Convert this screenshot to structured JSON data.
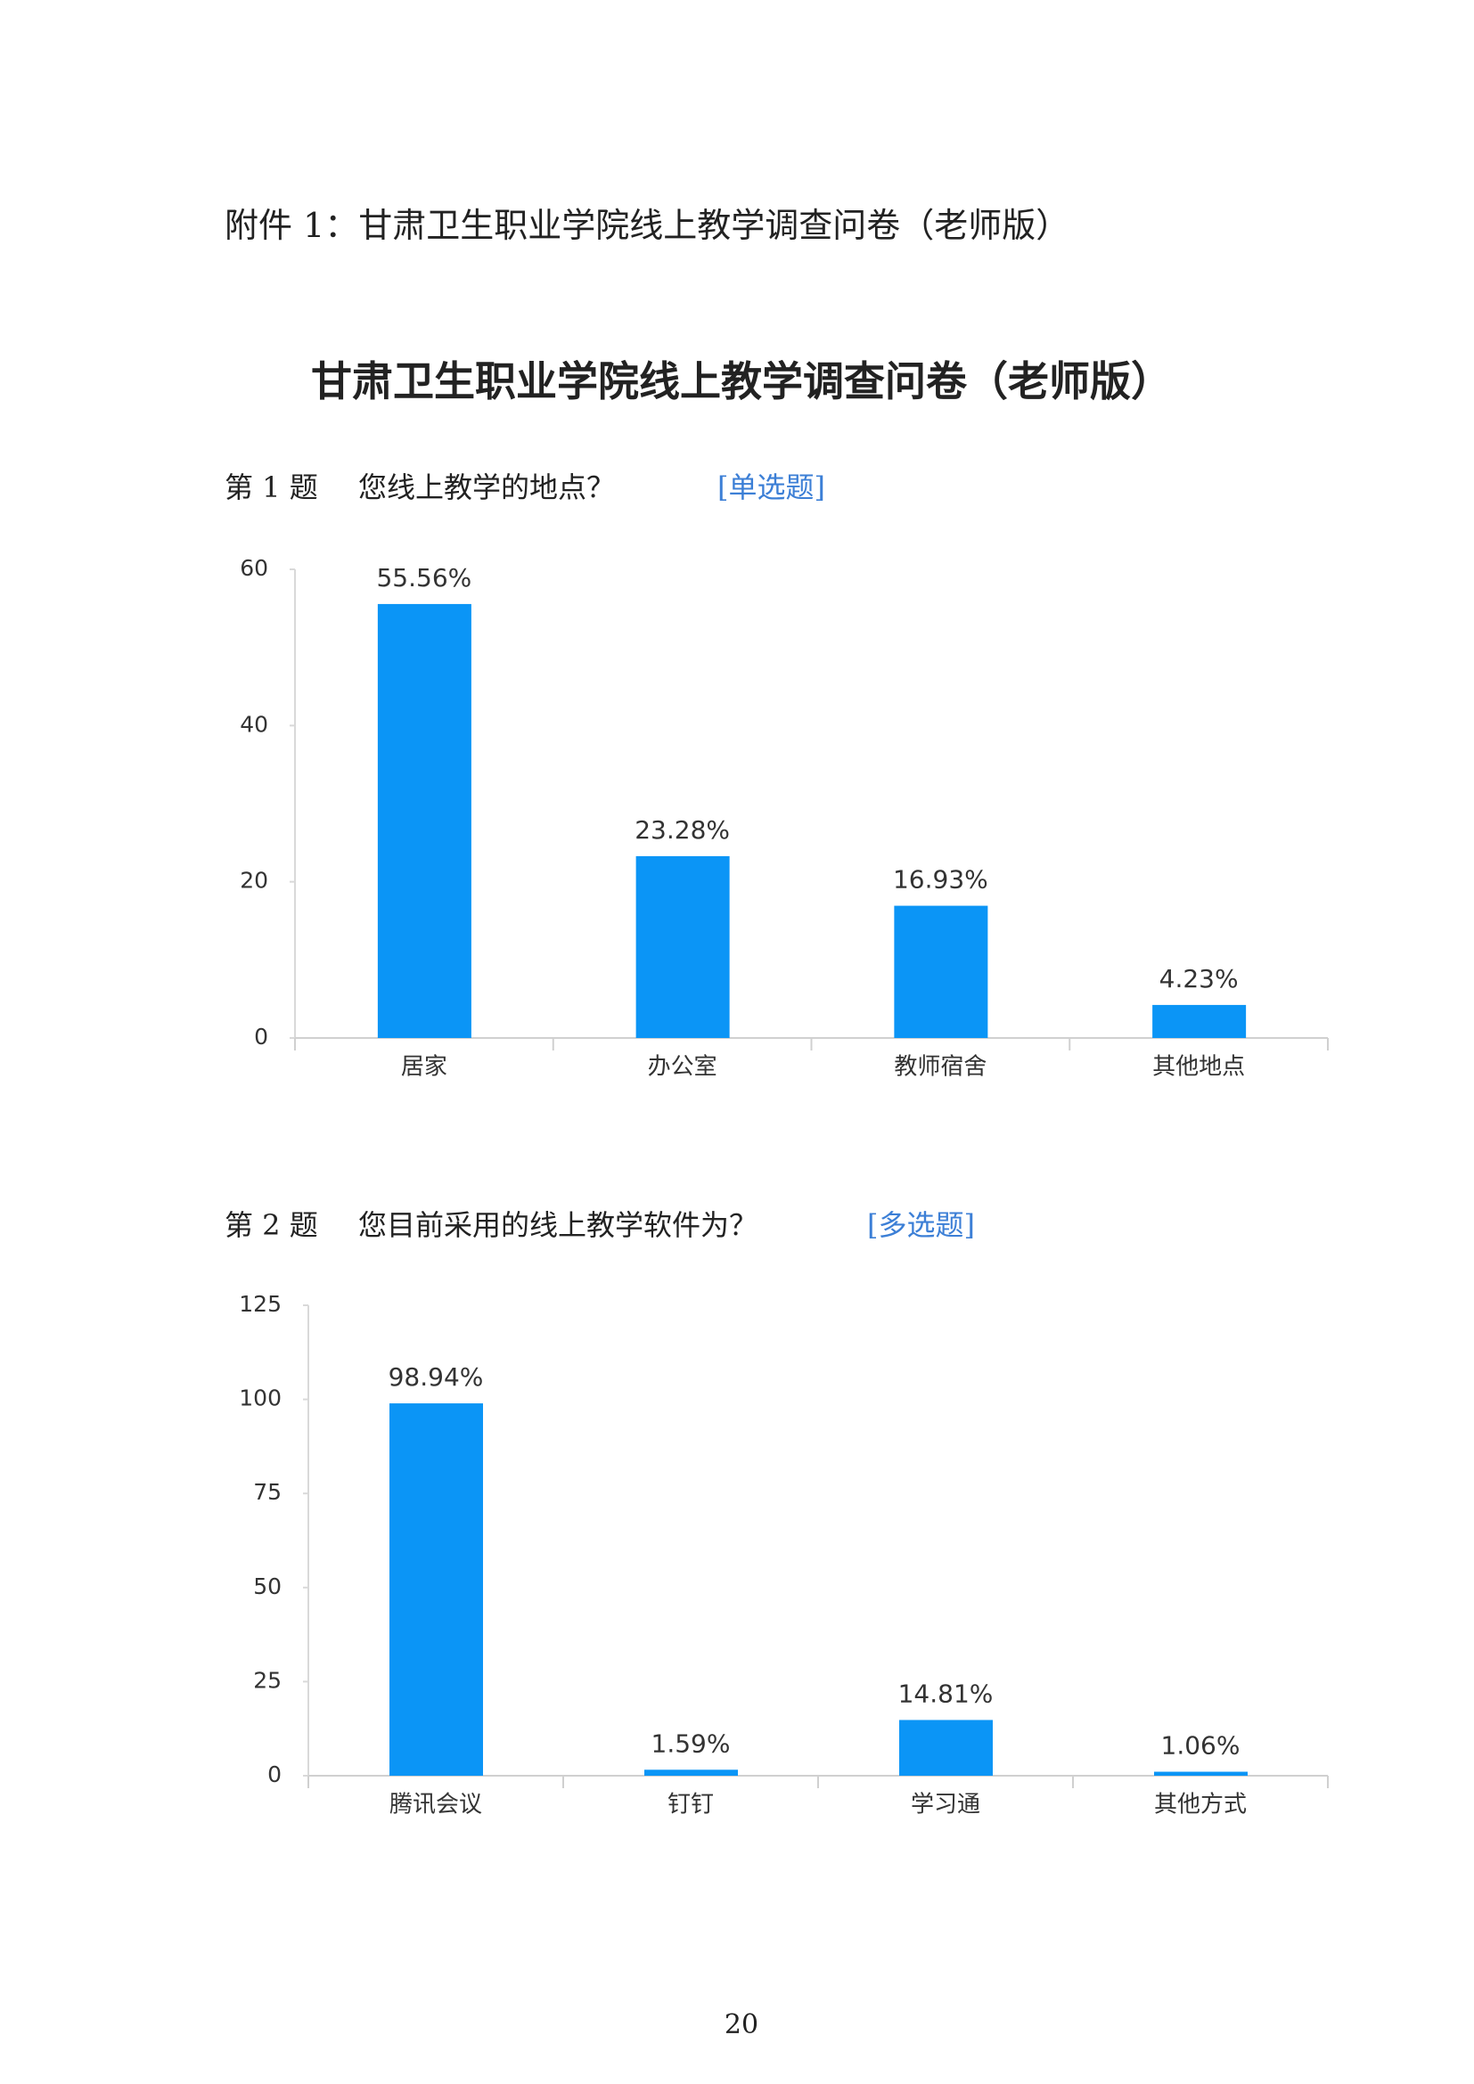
{
  "header": "附件 1：甘肃卫生职业学院线上教学调查问卷（老师版）",
  "title": "甘肃卫生职业学院线上教学调查问卷（老师版）",
  "questions": [
    {
      "number": "第 1 题",
      "text": "您线上教学的地点？",
      "kind": "[单选题]"
    },
    {
      "number": "第 2 题",
      "text": "您目前采用的线上教学软件为？",
      "kind": "[多选题]"
    }
  ],
  "chart_data": [
    {
      "type": "bar",
      "categories": [
        "居家",
        "办公室",
        "教师宿舍",
        "其他地点"
      ],
      "values": [
        55.56,
        23.28,
        16.93,
        4.23
      ],
      "value_labels": [
        "55.56%",
        "23.28%",
        "16.93%",
        "4.23%"
      ],
      "color": "#0b95f6",
      "ylim": [
        0,
        60
      ],
      "yticks": [
        0,
        20,
        40,
        60
      ]
    },
    {
      "type": "bar",
      "categories": [
        "腾讯会议",
        "钉钉",
        "学习通",
        "其他方式"
      ],
      "values": [
        98.94,
        1.59,
        14.81,
        1.06
      ],
      "value_labels": [
        "98.94%",
        "1.59%",
        "14.81%",
        "1.06%"
      ],
      "color": "#0b95f6",
      "ylim": [
        0,
        125
      ],
      "yticks": [
        0,
        25,
        50,
        75,
        100,
        125
      ]
    }
  ],
  "page_number": "20"
}
